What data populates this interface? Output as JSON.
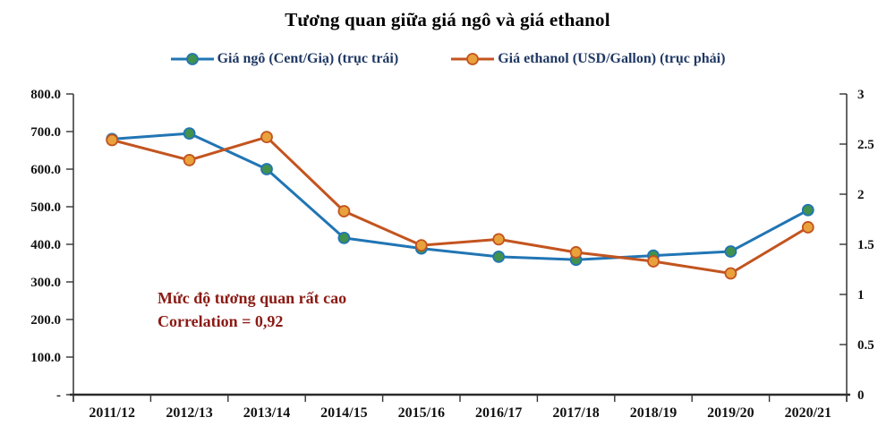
{
  "chart_data": {
    "type": "line",
    "title": "Tương quan giữa giá ngô và giá ethanol",
    "categories": [
      "2011/12",
      "2012/13",
      "2013/14",
      "2014/15",
      "2015/16",
      "2016/17",
      "2017/18",
      "2018/19",
      "2019/20",
      "2020/21"
    ],
    "series": [
      {
        "id": "corn",
        "name": "Giá ngô (Cent/Giạ) (trục trái)",
        "axis": "left",
        "values": [
          680,
          695,
          600,
          417,
          389,
          367,
          359,
          370,
          381,
          491
        ],
        "line_color": "#2175B4",
        "marker_color": "#41914F"
      },
      {
        "id": "ethanol",
        "name": "Giá ethanol (USD/Gallon) (trục phải)",
        "axis": "right",
        "values": [
          2.54,
          2.34,
          2.57,
          1.83,
          1.49,
          1.55,
          1.42,
          1.33,
          1.21,
          1.67
        ],
        "line_color": "#C3541F",
        "marker_color": "#E9A13C"
      }
    ],
    "left_axis": {
      "min": 0,
      "max": 800,
      "step": 100,
      "tick_labels": [
        "800.0",
        "700.0",
        "600.0",
        "500.0",
        "400.0",
        "300.0",
        "200.0",
        "100.0",
        "-"
      ]
    },
    "right_axis": {
      "min": 0,
      "max": 3,
      "step": 0.5,
      "tick_labels": [
        "3",
        "2.5",
        "2",
        "1.5",
        "1",
        "0.5",
        "0"
      ]
    },
    "annotation": {
      "line1": "Mức độ tương quan rất cao",
      "line2": "Correlation = 0,92",
      "color": "#8B1A13"
    },
    "legend_position": "top",
    "grid": "off",
    "colors": {
      "legend_text": "#1F3864",
      "axis_line": "#333333",
      "axis_text": "#111111"
    }
  }
}
